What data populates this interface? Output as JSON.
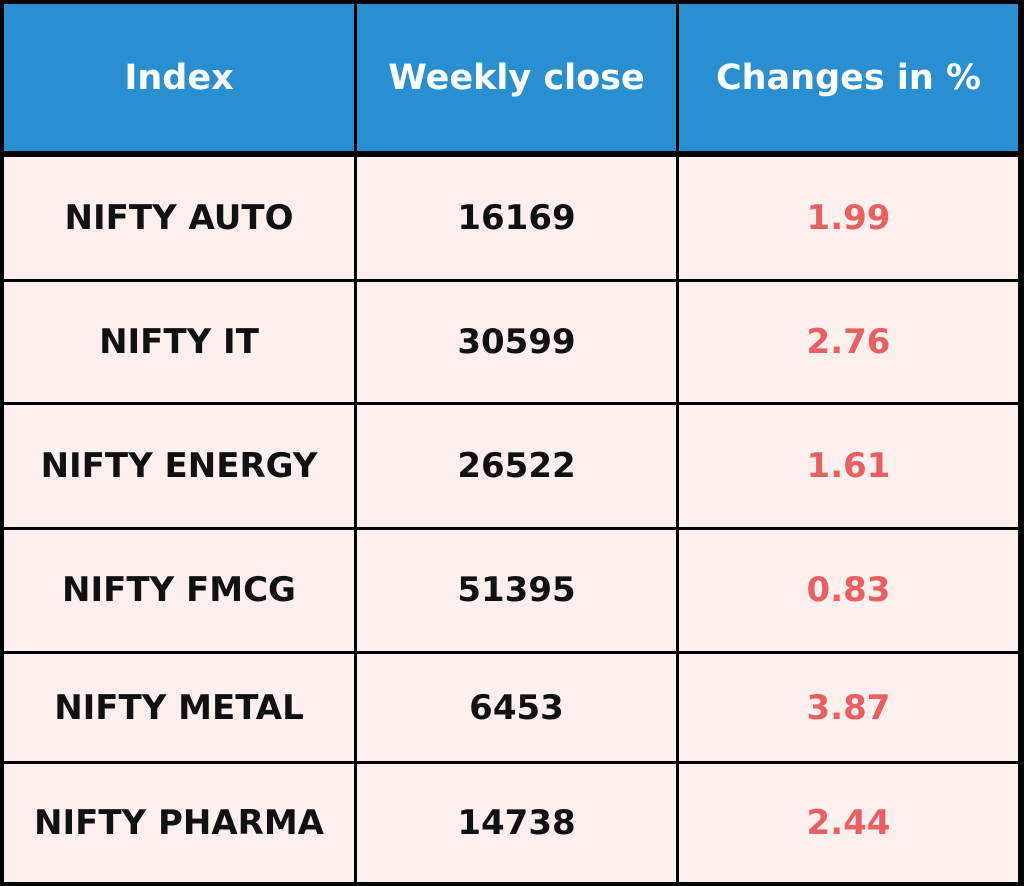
{
  "colors": {
    "header_bg": "#2a8fd0",
    "cell_bg": "#fdf0ee",
    "positive": "#ec5f5f"
  },
  "chart_data": {
    "type": "table",
    "columns": [
      "Index",
      "Weekly close",
      "Changes in %"
    ],
    "rows": [
      {
        "index": "NIFTY AUTO",
        "weekly_close": 16169,
        "change_pct": 1.99
      },
      {
        "index": "NIFTY IT",
        "weekly_close": 30599,
        "change_pct": 2.76
      },
      {
        "index": "NIFTY ENERGY",
        "weekly_close": 26522,
        "change_pct": 1.61
      },
      {
        "index": "NIFTY FMCG",
        "weekly_close": 51395,
        "change_pct": 0.83
      },
      {
        "index": "NIFTY METAL",
        "weekly_close": 6453,
        "change_pct": 3.87
      },
      {
        "index": "NIFTY PHARMA",
        "weekly_close": 14738,
        "change_pct": 2.44
      }
    ]
  }
}
